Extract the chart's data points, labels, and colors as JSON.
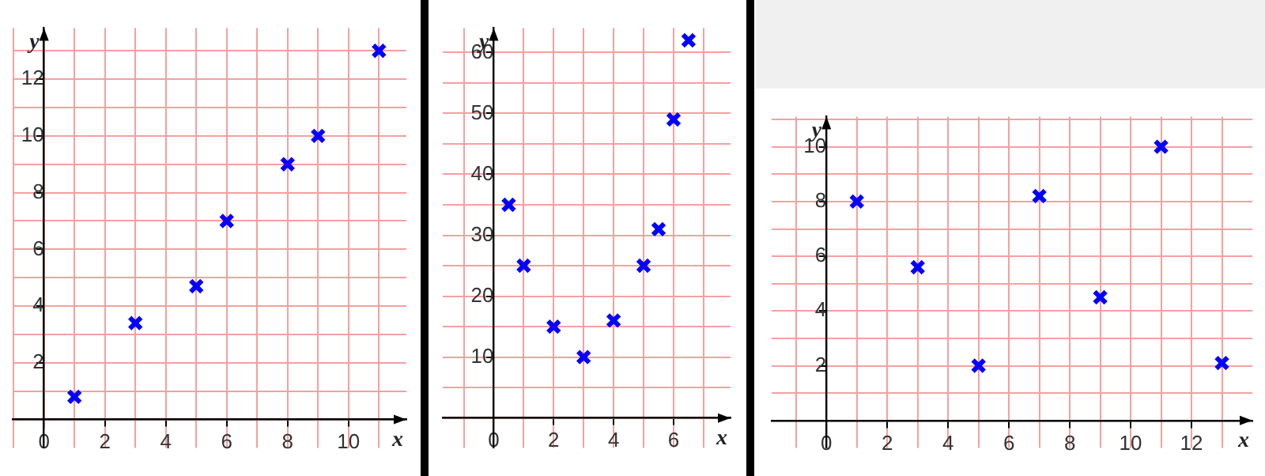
{
  "chart_data": [
    {
      "type": "scatter",
      "xlabel": "x",
      "ylabel": "y",
      "marker": "cross",
      "grid": true,
      "color": "#0000ff",
      "x": [
        1,
        3,
        5,
        6,
        8,
        9,
        11
      ],
      "values": [
        0.8,
        3.4,
        4.7,
        7,
        9,
        10,
        13
      ],
      "xlim": [
        -1.03,
        11.9
      ],
      "ylim": [
        -1,
        13.8
      ],
      "xticks": [
        {
          "value": -1,
          "label": null
        },
        {
          "value": 0,
          "label": "0"
        },
        {
          "value": 1,
          "label": null
        },
        2,
        {
          "value": 3,
          "label": null
        },
        4,
        {
          "value": 5,
          "label": null
        },
        6,
        {
          "value": 7,
          "label": null
        },
        8,
        {
          "value": 9,
          "label": null
        },
        10,
        {
          "value": 11,
          "label": null
        }
      ],
      "yticks": [
        {
          "value": 0,
          "label": null
        },
        {
          "value": 1,
          "label": null
        },
        2,
        {
          "value": 3,
          "label": null
        },
        4,
        {
          "value": 5,
          "label": null
        },
        6,
        {
          "value": 7,
          "label": null
        },
        8,
        {
          "value": 9,
          "label": null
        },
        10,
        {
          "value": 11,
          "label": null
        },
        12,
        {
          "value": 13,
          "label": null
        }
      ]
    },
    {
      "type": "scatter",
      "xlabel": "x",
      "ylabel": "y",
      "marker": "cross",
      "grid": true,
      "color": "#0000ff",
      "x": [
        0.5,
        1,
        2,
        3,
        4,
        5,
        5.5,
        6,
        6.5
      ],
      "values": [
        35,
        25,
        15,
        10,
        16,
        25,
        31,
        49,
        62
      ],
      "xlim": [
        -1.7,
        7.9
      ],
      "ylim": [
        -4.9,
        64
      ],
      "xticks": [
        {
          "value": -1,
          "label": null
        },
        {
          "value": 0,
          "label": "0"
        },
        {
          "value": 1,
          "label": null
        },
        2,
        {
          "value": 3,
          "label": null
        },
        4,
        {
          "value": 5,
          "label": null
        },
        6,
        {
          "value": 7,
          "label": null
        }
      ],
      "yticks": [
        {
          "value": 0,
          "label": null
        },
        {
          "value": 5,
          "label": null
        },
        10,
        {
          "value": 15,
          "label": null
        },
        20,
        {
          "value": 25,
          "label": null
        },
        30,
        {
          "value": 35,
          "label": null
        },
        40,
        {
          "value": 45,
          "label": null
        },
        50,
        {
          "value": 55,
          "label": null
        },
        60
      ]
    },
    {
      "type": "scatter",
      "xlabel": "x",
      "ylabel": "y",
      "marker": "cross",
      "grid": true,
      "color": "#0000ff",
      "x": [
        1,
        3,
        5,
        7,
        9,
        11,
        13
      ],
      "values": [
        8,
        5.6,
        2,
        8.2,
        4.5,
        10,
        2.1
      ],
      "xlim": [
        -1.8,
        14
      ],
      "ylim": [
        -1,
        11.1
      ],
      "xticks": [
        {
          "value": -1,
          "label": null
        },
        {
          "value": 0,
          "label": "0"
        },
        {
          "value": 1,
          "label": null
        },
        2,
        {
          "value": 3,
          "label": null
        },
        4,
        {
          "value": 5,
          "label": null
        },
        6,
        {
          "value": 7,
          "label": null
        },
        8,
        {
          "value": 9,
          "label": null
        },
        10,
        {
          "value": 11,
          "label": null
        },
        12,
        {
          "value": 13,
          "label": null
        }
      ],
      "yticks": [
        {
          "value": 0,
          "label": null
        },
        {
          "value": 1,
          "label": null
        },
        2,
        {
          "value": 3,
          "label": null
        },
        4,
        {
          "value": 5,
          "label": null
        },
        6,
        {
          "value": 7,
          "label": null
        },
        8,
        {
          "value": 9,
          "label": null
        },
        10,
        {
          "value": 11,
          "label": null
        }
      ]
    }
  ]
}
